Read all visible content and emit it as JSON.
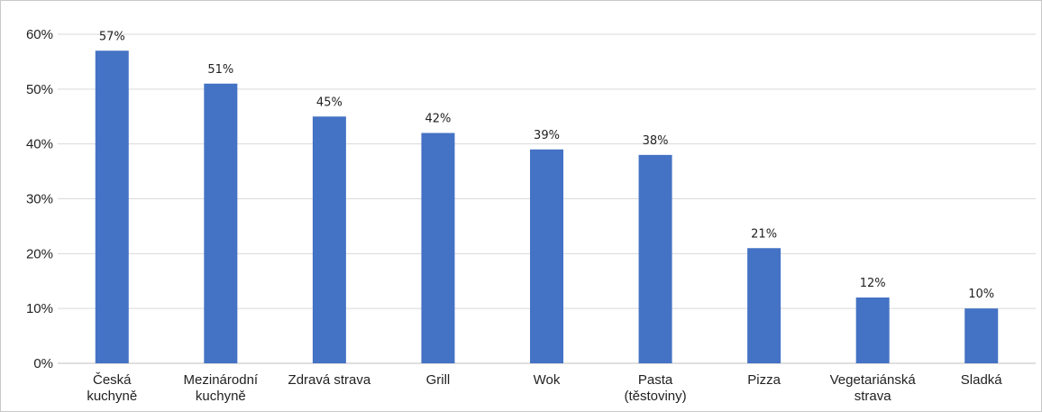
{
  "chart_data": {
    "type": "bar",
    "categories": [
      [
        "Česká",
        "kuchyně"
      ],
      [
        "Mezinárodní",
        "kuchyně"
      ],
      [
        "Zdravá strava"
      ],
      [
        "Grill"
      ],
      [
        "Wok"
      ],
      [
        "Pasta",
        "(těstoviny)"
      ],
      [
        "Pizza"
      ],
      [
        "Vegetariánská",
        "strava"
      ],
      [
        "Sladká"
      ]
    ],
    "values": [
      57,
      51,
      45,
      42,
      39,
      38,
      21,
      12,
      10
    ],
    "data_labels": [
      "57%",
      "51%",
      "45%",
      "42%",
      "39%",
      "38%",
      "21%",
      "12%",
      "10%"
    ],
    "ylim": [
      0,
      60
    ],
    "yticks": [
      0,
      10,
      20,
      30,
      40,
      50,
      60
    ],
    "ytick_labels": [
      "0%",
      "10%",
      "20%",
      "30%",
      "40%",
      "50%",
      "60%"
    ],
    "title": "",
    "xlabel": "",
    "ylabel": "",
    "grid": true,
    "legend": "none",
    "bar_color": "#4472C4"
  }
}
